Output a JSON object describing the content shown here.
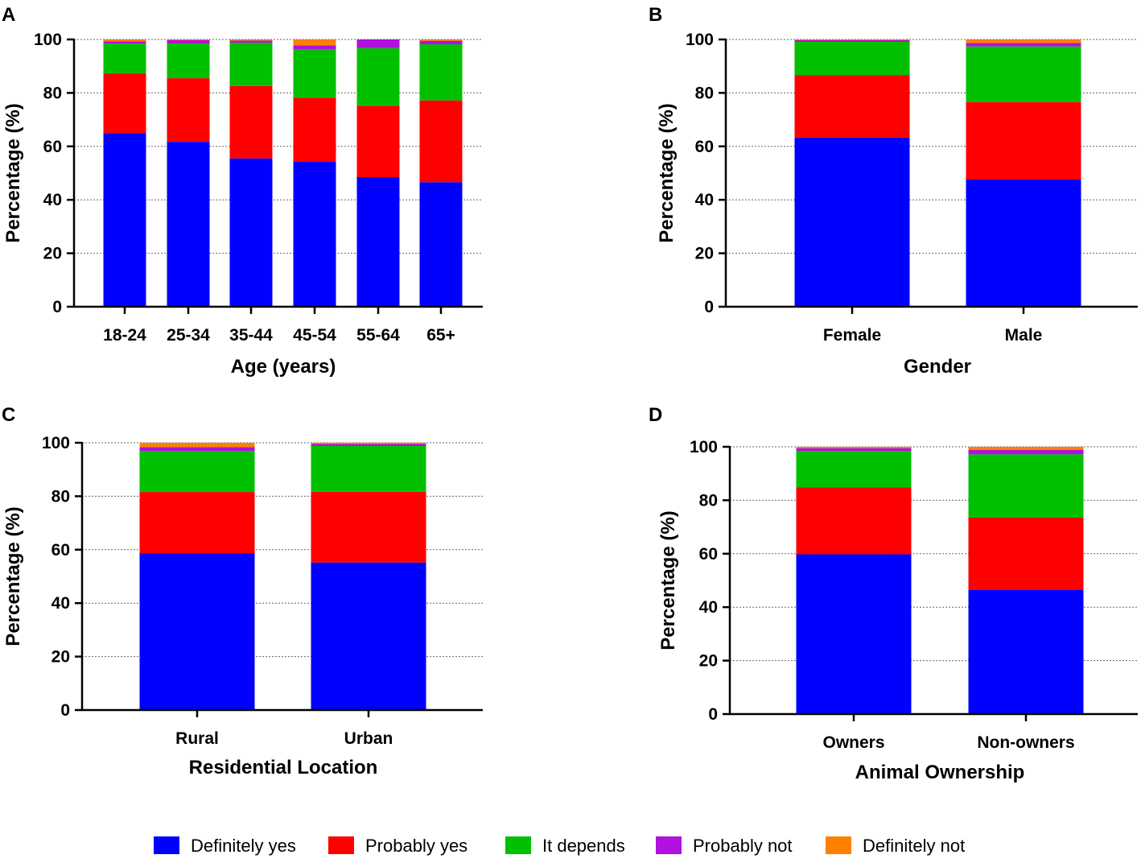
{
  "legend": [
    {
      "label": "Definitely yes",
      "color": "#0000ff"
    },
    {
      "label": "Probably yes",
      "color": "#ff0000"
    },
    {
      "label": "It depends",
      "color": "#00c000"
    },
    {
      "label": "Probably not",
      "color": "#b010e0"
    },
    {
      "label": "Definitely not",
      "color": "#ff8000"
    }
  ],
  "chart_data": [
    {
      "panel": "A",
      "type": "bar",
      "stacked": true,
      "title": "",
      "xlabel": "Age (years)",
      "ylabel": "Percentage (%)",
      "ylim": [
        0,
        100
      ],
      "yticks": [
        0,
        20,
        40,
        60,
        80,
        100
      ],
      "grid": true,
      "categories": [
        "18-24",
        "25-34",
        "35-44",
        "45-54",
        "55-64",
        "65+"
      ],
      "series": [
        {
          "name": "Definitely yes",
          "values": [
            65,
            61.7,
            55.5,
            54.2,
            48.5,
            46.6
          ]
        },
        {
          "name": "Probably yes",
          "values": [
            22.3,
            23.8,
            27.1,
            24,
            26.7,
            30.6
          ]
        },
        {
          "name": "It depends",
          "values": [
            11.2,
            13,
            16.2,
            18.2,
            21.6,
            21
          ]
        },
        {
          "name": "Probably not",
          "values": [
            0.8,
            1.2,
            0.8,
            1.4,
            3.2,
            1.3
          ]
        },
        {
          "name": "Definitely not",
          "values": [
            0.7,
            0.3,
            0.4,
            2.2,
            0,
            0.5
          ]
        }
      ]
    },
    {
      "panel": "B",
      "type": "bar",
      "stacked": true,
      "title": "",
      "xlabel": "Gender",
      "ylabel": "Percentage (%)",
      "ylim": [
        0,
        100
      ],
      "yticks": [
        0,
        20,
        40,
        60,
        80,
        100
      ],
      "grid": true,
      "categories": [
        "Female",
        "Male"
      ],
      "series": [
        {
          "name": "Definitely yes",
          "values": [
            63.3,
            47.6
          ]
        },
        {
          "name": "Probably yes",
          "values": [
            23.3,
            29
          ]
        },
        {
          "name": "It depends",
          "values": [
            12.5,
            20.8
          ]
        },
        {
          "name": "Probably not",
          "values": [
            0.6,
            1.3
          ]
        },
        {
          "name": "Definitely not",
          "values": [
            0.3,
            1.3
          ]
        }
      ]
    },
    {
      "panel": "C",
      "type": "bar",
      "stacked": true,
      "title": "",
      "xlabel": "Residential Location",
      "ylabel": "Percentage (%)",
      "ylim": [
        0,
        100
      ],
      "yticks": [
        0,
        20,
        40,
        60,
        80,
        100
      ],
      "grid": true,
      "categories": [
        "Rural",
        "Urban"
      ],
      "series": [
        {
          "name": "Definitely yes",
          "values": [
            58.7,
            55.2
          ]
        },
        {
          "name": "Probably yes",
          "values": [
            22.9,
            26.5
          ]
        },
        {
          "name": "It depends",
          "values": [
            15.4,
            17.1
          ]
        },
        {
          "name": "Probably not",
          "values": [
            1.4,
            0.8
          ]
        },
        {
          "name": "Definitely not",
          "values": [
            1.6,
            0.4
          ]
        }
      ]
    },
    {
      "panel": "D",
      "type": "bar",
      "stacked": true,
      "title": "",
      "xlabel": "Animal Ownership",
      "ylabel": "Percentage (%)",
      "ylim": [
        0,
        100
      ],
      "yticks": [
        0,
        20,
        40,
        60,
        80,
        100
      ],
      "grid": true,
      "categories": [
        "Owners",
        "Non-owners"
      ],
      "series": [
        {
          "name": "Definitely yes",
          "values": [
            59.8,
            46.5
          ]
        },
        {
          "name": "Probably yes",
          "values": [
            25,
            27
          ]
        },
        {
          "name": "It depends",
          "values": [
            13.7,
            23.7
          ]
        },
        {
          "name": "Probably not",
          "values": [
            1,
            1.6
          ]
        },
        {
          "name": "Definitely not",
          "values": [
            0.5,
            1.2
          ]
        }
      ]
    }
  ]
}
